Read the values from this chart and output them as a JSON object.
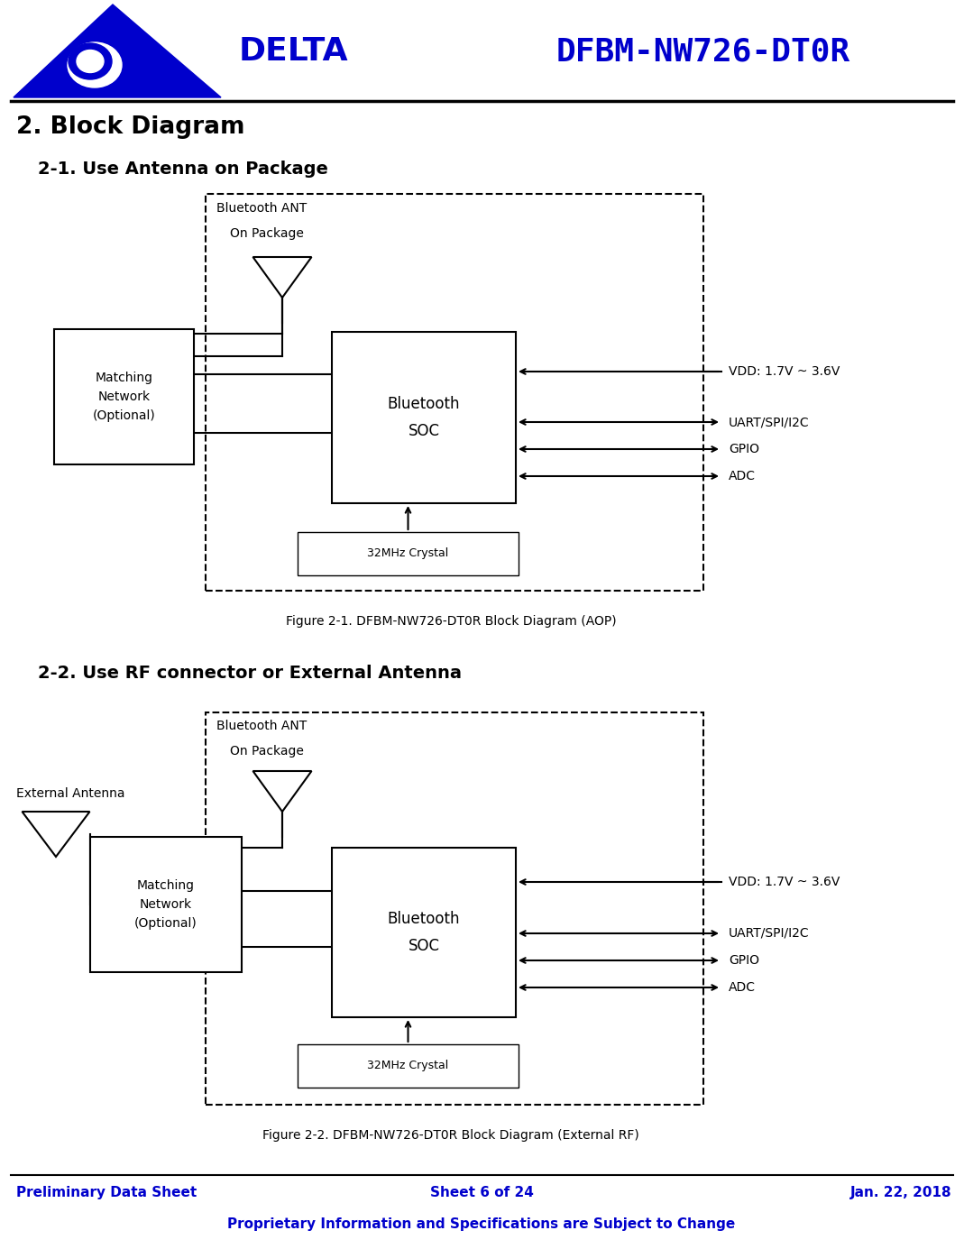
{
  "title": "DFBM-NW726-DT0R",
  "blue_color": "#0000CC",
  "black_color": "#000000",
  "bg_color": "#FFFFFF",
  "section_title": "2. Block Diagram",
  "subsection1": "2-1. Use Antenna on Package",
  "subsection2": "2-2. Use RF connector or External Antenna",
  "fig_caption1": "Figure 2-1. DFBM-NW726-DT0R Block Diagram (AOP)",
  "fig_caption2": "Figure 2-2. DFBM-NW726-DT0R Block Diagram (External RF)",
  "footer_left": "Preliminary Data Sheet",
  "footer_center": "Sheet 6 of 24",
  "footer_right": "Jan. 22, 2018",
  "footer_bottom": "Proprietary Information and Specifications are Subject to Change",
  "vdd_label": "VDD: 1.7V ~ 3.6V",
  "uart_label": "UART/SPI/I2C",
  "gpio_label": "GPIO",
  "adc_label": "ADC",
  "matching_label": "Matching\nNetwork\n(Optional)",
  "bt_soc_label": "Bluetooth\nSOC",
  "crystal_label": "32MHz Crystal",
  "ant_line1": "Bluetooth ANT",
  "ant_line2": "On Package",
  "ext_ant_label": "External Antenna",
  "delta_text": "DELTA"
}
